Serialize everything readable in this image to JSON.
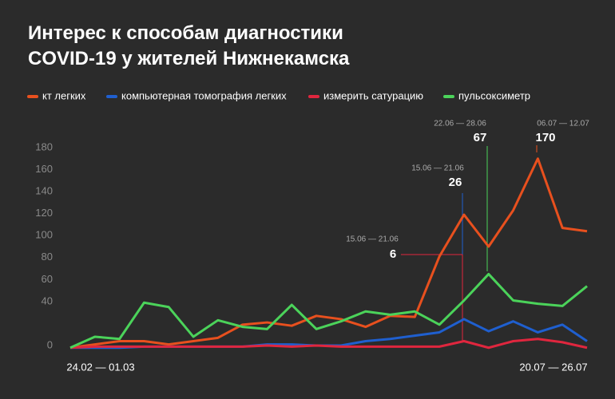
{
  "chart_data": {
    "type": "line",
    "title": "Интерес к способам диагностики COVID-19 у жителей Нижнекамска",
    "categories": [
      "24.02 — 01.03",
      null,
      null,
      null,
      null,
      null,
      null,
      null,
      null,
      null,
      null,
      null,
      null,
      null,
      null,
      null,
      null,
      null,
      null,
      null,
      null,
      "20.07 — 26.07"
    ],
    "series": [
      {
        "name": "кт легких",
        "color": "#e8501e",
        "values": [
          -2,
          1,
          4,
          4,
          1,
          4,
          7,
          19,
          21,
          18,
          27,
          24,
          17,
          27,
          26,
          81,
          119,
          90,
          123,
          170,
          107,
          104
        ]
      },
      {
        "name": "компьютерная томография легких",
        "color": "#1f5fcf",
        "values": [
          -2,
          -2,
          -2,
          -1,
          -1,
          -1,
          -1,
          -1,
          1,
          1,
          0,
          0,
          4,
          6,
          9,
          12,
          24,
          13,
          22,
          12,
          19,
          4
        ]
      },
      {
        "name": "измерить сатурацию",
        "color": "#e0263e",
        "values": [
          -2,
          -1,
          -1,
          -1,
          -1,
          -1,
          -1,
          -1,
          0,
          -1,
          0,
          -1,
          -1,
          -1,
          -1,
          -1,
          4,
          -2,
          4,
          6,
          3,
          -2
        ]
      },
      {
        "name": "пульсоксиметр",
        "color": "#4bd35a",
        "values": [
          -2,
          8,
          6,
          39,
          35,
          8,
          23,
          17,
          15,
          37,
          15,
          22,
          31,
          28,
          31,
          19,
          41,
          65,
          41,
          38,
          36,
          54
        ]
      }
    ],
    "ylim": [
      0,
      180
    ],
    "yticks": [
      0,
      40,
      60,
      80,
      100,
      120,
      140,
      160,
      180
    ],
    "grid": false,
    "annotations": [
      {
        "date": "06.07 — 12.07",
        "value": 170
      },
      {
        "date": "22.06 — 28.06",
        "value": 67
      },
      {
        "date": "15.06 — 21.06",
        "value": 26
      },
      {
        "date": "15.06 — 21.06",
        "value": 6
      }
    ]
  }
}
